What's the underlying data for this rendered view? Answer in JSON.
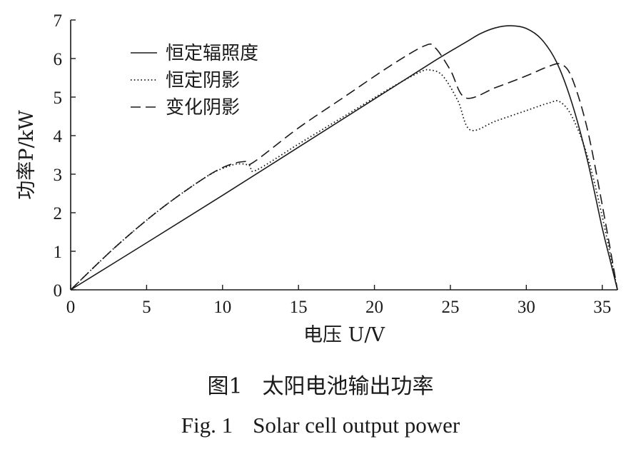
{
  "chart_data": {
    "type": "line",
    "xlabel": "电压 U/V",
    "ylabel": "功率P/kW",
    "xlim": [
      0,
      36
    ],
    "ylim": [
      0,
      7
    ],
    "xticks": [
      0,
      5,
      10,
      15,
      20,
      25,
      30,
      35
    ],
    "yticks": [
      0,
      1,
      2,
      3,
      4,
      5,
      6,
      7
    ],
    "grid": false,
    "legend_position": "top-left",
    "series": [
      {
        "name": "恒定辐照度",
        "line_style": "solid",
        "x": [
          0,
          5,
          10,
          15,
          20,
          24,
          26,
          27,
          28,
          29,
          30,
          31,
          32,
          33,
          34,
          35,
          35.5,
          36
        ],
        "y": [
          0,
          1.22,
          2.45,
          3.7,
          4.95,
          5.95,
          6.42,
          6.65,
          6.8,
          6.85,
          6.78,
          6.5,
          5.9,
          4.85,
          3.4,
          1.6,
          0.8,
          0
        ]
      },
      {
        "name": "恒定阴影",
        "line_style": "dotted",
        "x": [
          0,
          3,
          6,
          9,
          10.5,
          11.2,
          11.8,
          12.2,
          15,
          18,
          21,
          23,
          23.7,
          24.5,
          25.5,
          26.3,
          28,
          30,
          31.5,
          32.2,
          33,
          34,
          35,
          36
        ],
        "y": [
          0,
          1.13,
          2.12,
          2.95,
          3.22,
          3.27,
          3.22,
          3.1,
          3.78,
          4.5,
          5.22,
          5.65,
          5.7,
          5.55,
          4.9,
          4.15,
          4.38,
          4.65,
          4.85,
          4.88,
          4.5,
          3.5,
          1.9,
          0
        ]
      },
      {
        "name": "变化阴影",
        "line_style": "dashed",
        "x": [
          0,
          3,
          6,
          9,
          10.5,
          11.5,
          12,
          15,
          18,
          21,
          23.3,
          24,
          25,
          26,
          28,
          30,
          31.5,
          32.3,
          33,
          34,
          35,
          36
        ],
        "y": [
          0,
          1.13,
          2.12,
          2.95,
          3.25,
          3.33,
          3.3,
          4.2,
          5.0,
          5.8,
          6.33,
          6.28,
          5.7,
          4.98,
          5.25,
          5.55,
          5.8,
          5.85,
          5.5,
          4.2,
          2.2,
          0
        ]
      }
    ]
  },
  "caption": {
    "zh_number": "图1",
    "zh_text": "太阳电池输出功率",
    "en_number": "Fig. 1",
    "en_text": "Solar cell output power"
  }
}
